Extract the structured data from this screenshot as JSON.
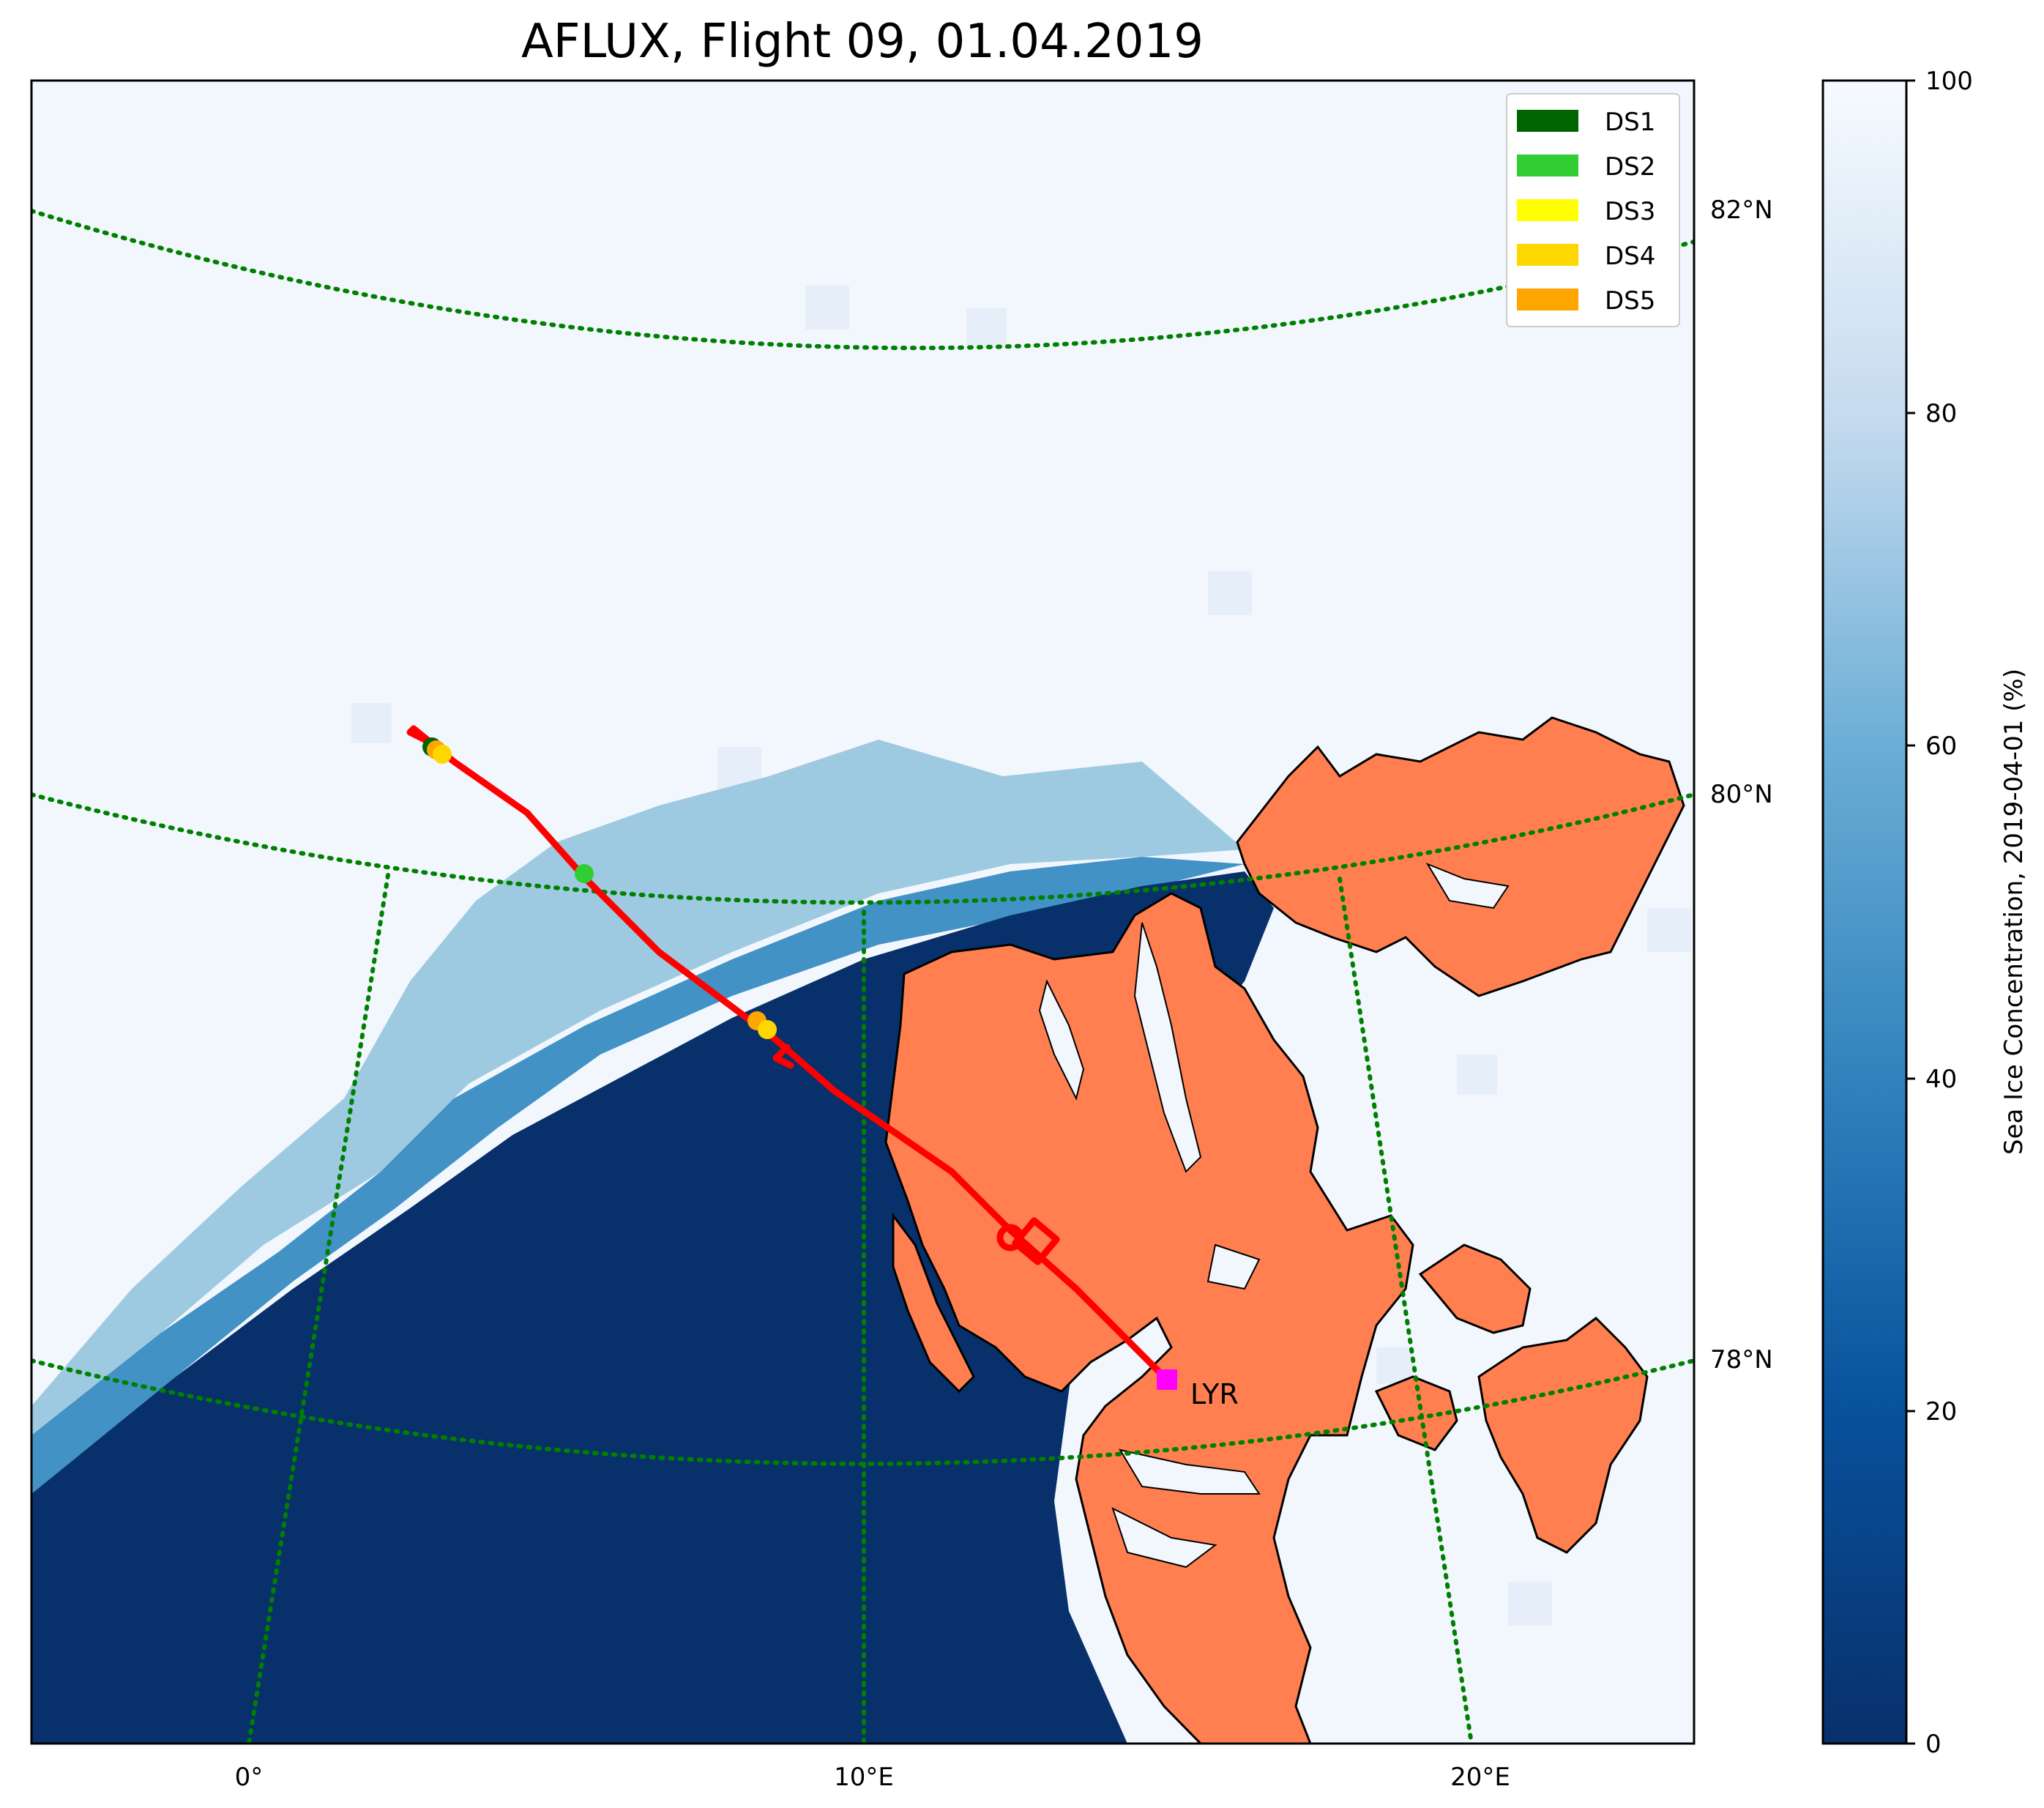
{
  "title": "AFLUX, Flight 09, 01.04.2019",
  "colorbar": {
    "label": "Sea Ice Concentration, 2019-04-01 (%)",
    "ticks": [
      "0",
      "20",
      "40",
      "60",
      "80",
      "100"
    ],
    "min": 0,
    "max": 100,
    "colormap": "Blues_r",
    "color_low": "#08306b",
    "color_high": "#f7fbff"
  },
  "legend": {
    "location": "top-right",
    "items": [
      {
        "label": "DS1",
        "color": "#006400"
      },
      {
        "label": "DS2",
        "color": "#32cd32"
      },
      {
        "label": "DS3",
        "color": "#ffff00"
      },
      {
        "label": "DS4",
        "color": "#ffd700"
      },
      {
        "label": "DS5",
        "color": "#ffa500"
      }
    ]
  },
  "graticule": {
    "color": "#008000",
    "style": "dotted",
    "lat_labels": [
      "82°N",
      "80°N",
      "78°N"
    ],
    "lon_labels": [
      "0°",
      "10°E",
      "20°E"
    ]
  },
  "land_color": "#ff7f50",
  "flight_track_color": "#ff0000",
  "airport": {
    "label": "LYR",
    "color": "#ff00ff"
  }
}
